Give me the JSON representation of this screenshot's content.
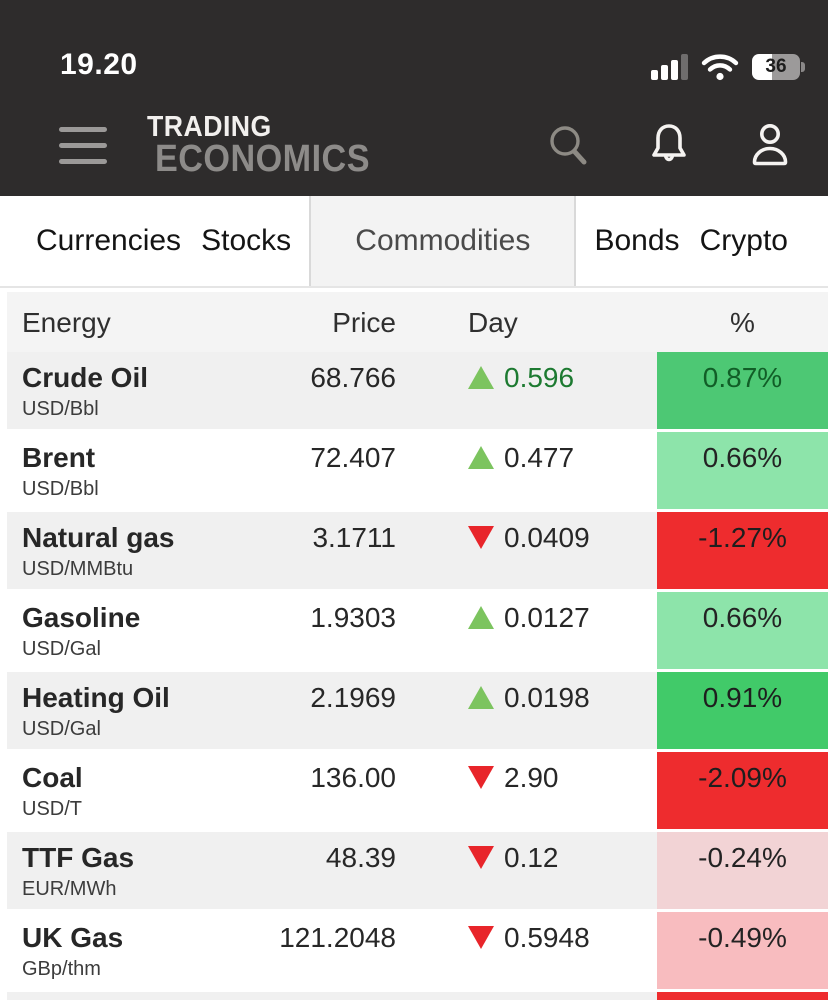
{
  "status_bar": {
    "time": "19.20",
    "battery_percent": "36"
  },
  "header": {
    "brand_line1": "TRADING",
    "brand_line2": "ECONOMICS",
    "icons": [
      "menu",
      "search",
      "notifications",
      "account"
    ]
  },
  "tabs": [
    {
      "label": "Currencies",
      "active": false
    },
    {
      "label": "Stocks",
      "active": false
    },
    {
      "label": "Commodities",
      "active": true
    },
    {
      "label": "Bonds",
      "active": false
    },
    {
      "label": "Crypto",
      "active": false
    }
  ],
  "table": {
    "headers": {
      "category": "Energy",
      "price": "Price",
      "day": "Day",
      "percent": "%"
    },
    "rows": [
      {
        "name": "Crude Oil",
        "unit": "USD/Bbl",
        "price": "68.766",
        "direction": "up",
        "day": "0.596",
        "day_color": "#1d7a31",
        "percent": "0.87%",
        "pct_bg": "#4dc874",
        "pct_color": "#115e27"
      },
      {
        "name": "Brent",
        "unit": "USD/Bbl",
        "price": "72.407",
        "direction": "up",
        "day": "0.477",
        "day_color": "#272727",
        "percent": "0.66%",
        "pct_bg": "#8de4aa",
        "pct_color": "#232323"
      },
      {
        "name": "Natural gas",
        "unit": "USD/MMBtu",
        "price": "3.1711",
        "direction": "down",
        "day": "0.0409",
        "day_color": "#272727",
        "percent": "-1.27%",
        "pct_bg": "#ee2c2e",
        "pct_color": "#1e1e1e"
      },
      {
        "name": "Gasoline",
        "unit": "USD/Gal",
        "price": "1.9303",
        "direction": "up",
        "day": "0.0127",
        "day_color": "#272727",
        "percent": "0.66%",
        "pct_bg": "#8de4aa",
        "pct_color": "#232323"
      },
      {
        "name": "Heating Oil",
        "unit": "USD/Gal",
        "price": "2.1969",
        "direction": "up",
        "day": "0.0198",
        "day_color": "#272727",
        "percent": "0.91%",
        "pct_bg": "#41ca69",
        "pct_color": "#1e1e1e"
      },
      {
        "name": "Coal",
        "unit": "USD/T",
        "price": "136.00",
        "direction": "down",
        "day": "2.90",
        "day_color": "#272727",
        "percent": "-2.09%",
        "pct_bg": "#ee2c2e",
        "pct_color": "#1e1e1e"
      },
      {
        "name": "TTF Gas",
        "unit": "EUR/MWh",
        "price": "48.39",
        "direction": "down",
        "day": "0.12",
        "day_color": "#272727",
        "percent": "-0.24%",
        "pct_bg": "#f2d3d5",
        "pct_color": "#232323"
      },
      {
        "name": "UK Gas",
        "unit": "GBp/thm",
        "price": "121.2048",
        "direction": "down",
        "day": "0.5948",
        "day_color": "#272727",
        "percent": "-0.49%",
        "pct_bg": "#f8bcbf",
        "pct_color": "#232323"
      }
    ],
    "partial_row": {
      "pct_bg": "#ee2c2e",
      "row_bg": "#f0f0f0"
    }
  },
  "colors": {
    "top_bar_bg": "#2e2c2c",
    "row_stripe": "#f0f0f0",
    "table_header_bg": "#f4f4f4",
    "active_tab_bg": "#f3f3f3",
    "up_triangle": "#7cc45f",
    "down_triangle": "#e8252a"
  }
}
